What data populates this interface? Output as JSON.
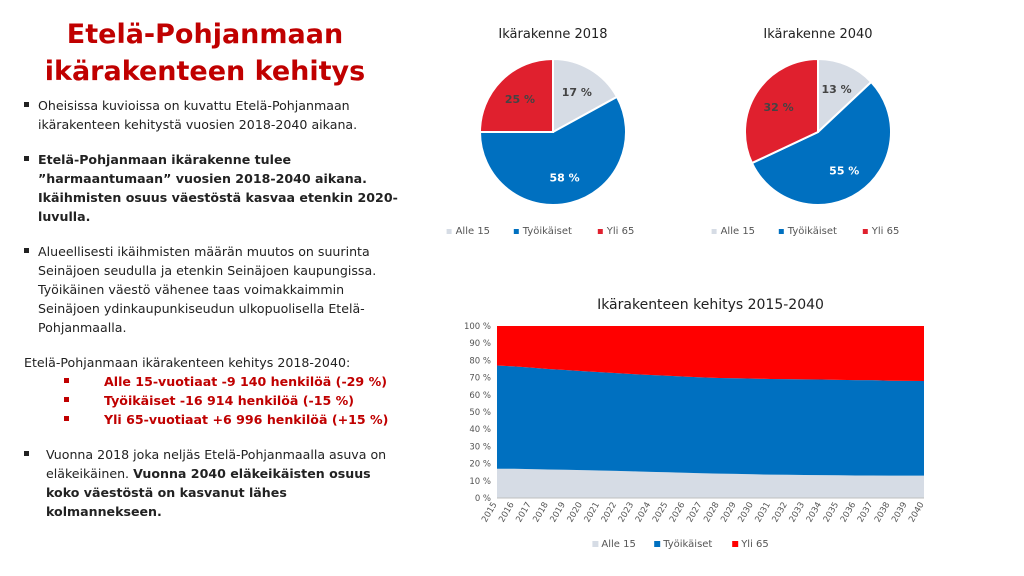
{
  "title": [
    "Etelä-Pohjanmaan",
    "ikärakenteen kehitys"
  ],
  "bullets": {
    "b1": "Oheisissa kuvioissa on kuvattu Etelä-Pohjanmaan ikärakenteen kehitystä vuosien 2018-2040 aikana.",
    "b2": "Etelä-Pohjanmaan ikärakenne tulee ”harmaantumaan” vuosien 2018-2040 aikana. Ikäihmisten osuus väestöstä kasvaa etenkin 2020-luvulla.",
    "b3": "Alueellisesti ikäihmisten määrän muutos on suurinta Seinäjoen seudulla ja etenkin Seinäjoen kaupungissa. Työikäinen väestö vähenee taas voimakkaimmin Seinäjoen ydinkaupunkiseudun ulkopuolisella Etelä-Pohjanmaalla.",
    "summary_head": "Etelä-Pohjanmaan ikärakenteen kehitys 2018-2040:",
    "summary_items": [
      "Alle 15-vuotiaat -9 140 henkilöä (-29 %)",
      "Työikäiset -16 914 henkilöä (-15 %)",
      "Yli 65-vuotiaat +6 996 henkilöä (+15 %)"
    ],
    "b4_normal": "Vuonna 2018 joka neljäs Etelä-Pohjanmaalla asuva on eläkeikäinen.",
    "b4_bold": "Vuonna 2040 eläkeikäisten osuus koko väestöstä on kasvanut lähes kolmannekseen."
  },
  "chart_data": [
    {
      "type": "pie",
      "title": "Ikärakenne 2018",
      "categories": [
        "Alle 15",
        "Työikäiset",
        "Yli 65"
      ],
      "values": [
        17,
        58,
        25
      ],
      "labels": [
        "17 %",
        "58 %",
        "25 %"
      ],
      "colors": [
        "#d6dce5",
        "#0070c0",
        "#e0202e"
      ],
      "legend": "bottom"
    },
    {
      "type": "pie",
      "title": "Ikärakenne 2040",
      "categories": [
        "Alle 15",
        "Työikäiset",
        "Yli 65"
      ],
      "values": [
        13,
        55,
        32
      ],
      "labels": [
        "13 %",
        "55 %",
        "32 %"
      ],
      "colors": [
        "#d6dce5",
        "#0070c0",
        "#e0202e"
      ],
      "legend": "bottom"
    },
    {
      "type": "area",
      "stacked": "100%",
      "title": "Ikärakenteen kehitys 2015-2040",
      "x": [
        "2015",
        "2016",
        "2017",
        "2018",
        "2019",
        "2020",
        "2021",
        "2022",
        "2023",
        "2024",
        "2025",
        "2026",
        "2027",
        "2028",
        "2029",
        "2030",
        "2031",
        "2032",
        "2033",
        "2034",
        "2035",
        "2036",
        "2037",
        "2038",
        "2039",
        "2040"
      ],
      "series": [
        {
          "name": "Alle 15",
          "color": "#d6dce5",
          "values": [
            17,
            17,
            16.8,
            16.6,
            16.4,
            16.2,
            16,
            15.8,
            15.5,
            15.2,
            15,
            14.7,
            14.4,
            14.2,
            14,
            13.8,
            13.6,
            13.5,
            13.4,
            13.3,
            13.2,
            13.1,
            13.1,
            13,
            13,
            13
          ]
        },
        {
          "name": "Työikäiset",
          "color": "#0070c0",
          "values": [
            60,
            59.5,
            59,
            58.4,
            58,
            57.6,
            57.2,
            56.8,
            56.5,
            56.3,
            56.1,
            55.9,
            55.7,
            55.6,
            55.6,
            55.6,
            55.6,
            55.6,
            55.6,
            55.6,
            55.5,
            55.4,
            55.4,
            55.2,
            55.1,
            55
          ]
        },
        {
          "name": "Yli 65",
          "color": "#ff0000",
          "values": [
            23,
            23.5,
            24.2,
            25,
            25.6,
            26.2,
            26.8,
            27.4,
            28,
            28.5,
            28.9,
            29.4,
            29.9,
            30.2,
            30.4,
            30.6,
            30.8,
            30.9,
            31,
            31.1,
            31.3,
            31.5,
            31.5,
            31.8,
            31.9,
            32
          ]
        }
      ],
      "yticks": [
        "0 %",
        "10 %",
        "20 %",
        "30 %",
        "40 %",
        "50 %",
        "60 %",
        "70 %",
        "80 %",
        "90 %",
        "100 %"
      ],
      "ylim": [
        0,
        100
      ],
      "legend": "bottom"
    }
  ]
}
